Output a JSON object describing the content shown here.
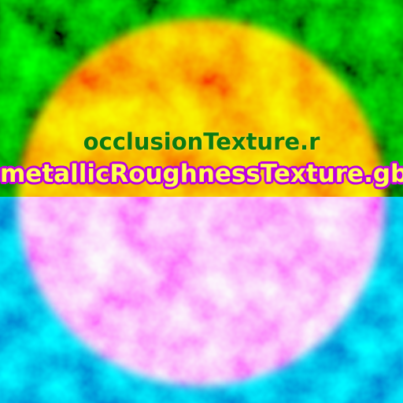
{
  "labels": {
    "occlusion": "occlusionTexture.r",
    "metallic_roughness": "metallicRoughnessTexture.gb"
  },
  "colors": {
    "top_background": "#159c1a",
    "bottom_background": "#1b7fe0",
    "disc_top": "#f06a0a",
    "disc_bottom": "#f283f2",
    "occlusion_text": "#0c7a12",
    "metallic_text": "#ffff4a",
    "metallic_outline": "#c000e0"
  }
}
